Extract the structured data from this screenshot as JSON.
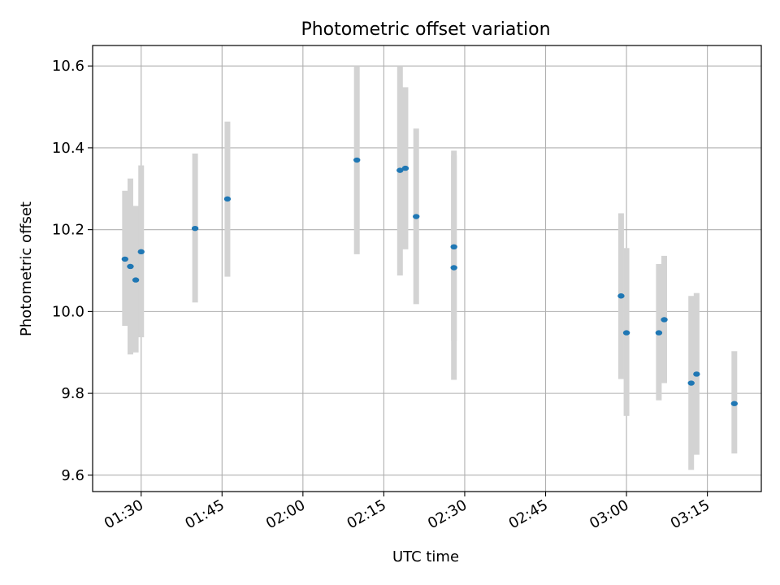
{
  "chart_data": {
    "type": "scatter",
    "title": "Photometric offset variation",
    "xlabel": "UTC time",
    "ylabel": "Photometric offset",
    "x_ticks": [
      "01:30",
      "01:45",
      "02:00",
      "02:15",
      "02:30",
      "02:45",
      "03:00",
      "03:15"
    ],
    "y_ticks": [
      "9.6",
      "9.8",
      "10.0",
      "10.2",
      "10.4",
      "10.6"
    ],
    "xlim": [
      "01:21",
      "03:25"
    ],
    "ylim": [
      9.56,
      10.65
    ],
    "grid": true,
    "colors": {
      "point": "#1f77b4",
      "errorbar": "#d3d3d3",
      "grid": "#b0b0b0"
    },
    "points": [
      {
        "t": "01:27",
        "y": 10.128,
        "lo": 9.965,
        "hi": 10.295
      },
      {
        "t": "01:28",
        "y": 10.11,
        "lo": 9.895,
        "hi": 10.325
      },
      {
        "t": "01:29",
        "y": 10.077,
        "lo": 9.9,
        "hi": 10.258
      },
      {
        "t": "01:30",
        "y": 10.146,
        "lo": 9.937,
        "hi": 10.357
      },
      {
        "t": "01:40",
        "y": 10.203,
        "lo": 10.022,
        "hi": 10.386
      },
      {
        "t": "01:46",
        "y": 10.275,
        "lo": 10.085,
        "hi": 10.464
      },
      {
        "t": "02:10",
        "y": 10.37,
        "lo": 10.14,
        "hi": 10.6
      },
      {
        "t": "02:18",
        "y": 10.345,
        "lo": 10.088,
        "hi": 10.6
      },
      {
        "t": "02:19",
        "y": 10.35,
        "lo": 10.152,
        "hi": 10.548
      },
      {
        "t": "02:21",
        "y": 10.232,
        "lo": 10.018,
        "hi": 10.447
      },
      {
        "t": "02:28",
        "y": 10.158,
        "lo": 9.928,
        "hi": 10.393
      },
      {
        "t": "02:28",
        "y": 10.107,
        "lo": 9.833,
        "hi": 10.381
      },
      {
        "t": "02:59",
        "y": 10.038,
        "lo": 9.835,
        "hi": 10.24
      },
      {
        "t": "03:00",
        "y": 9.948,
        "lo": 9.745,
        "hi": 10.155
      },
      {
        "t": "03:06",
        "y": 9.948,
        "lo": 9.783,
        "hi": 10.116
      },
      {
        "t": "03:07",
        "y": 9.98,
        "lo": 9.825,
        "hi": 10.136
      },
      {
        "t": "03:12",
        "y": 9.825,
        "lo": 9.613,
        "hi": 10.038
      },
      {
        "t": "03:13",
        "y": 9.847,
        "lo": 9.65,
        "hi": 10.045
      },
      {
        "t": "03:20",
        "y": 9.775,
        "lo": 9.653,
        "hi": 9.903
      }
    ]
  }
}
